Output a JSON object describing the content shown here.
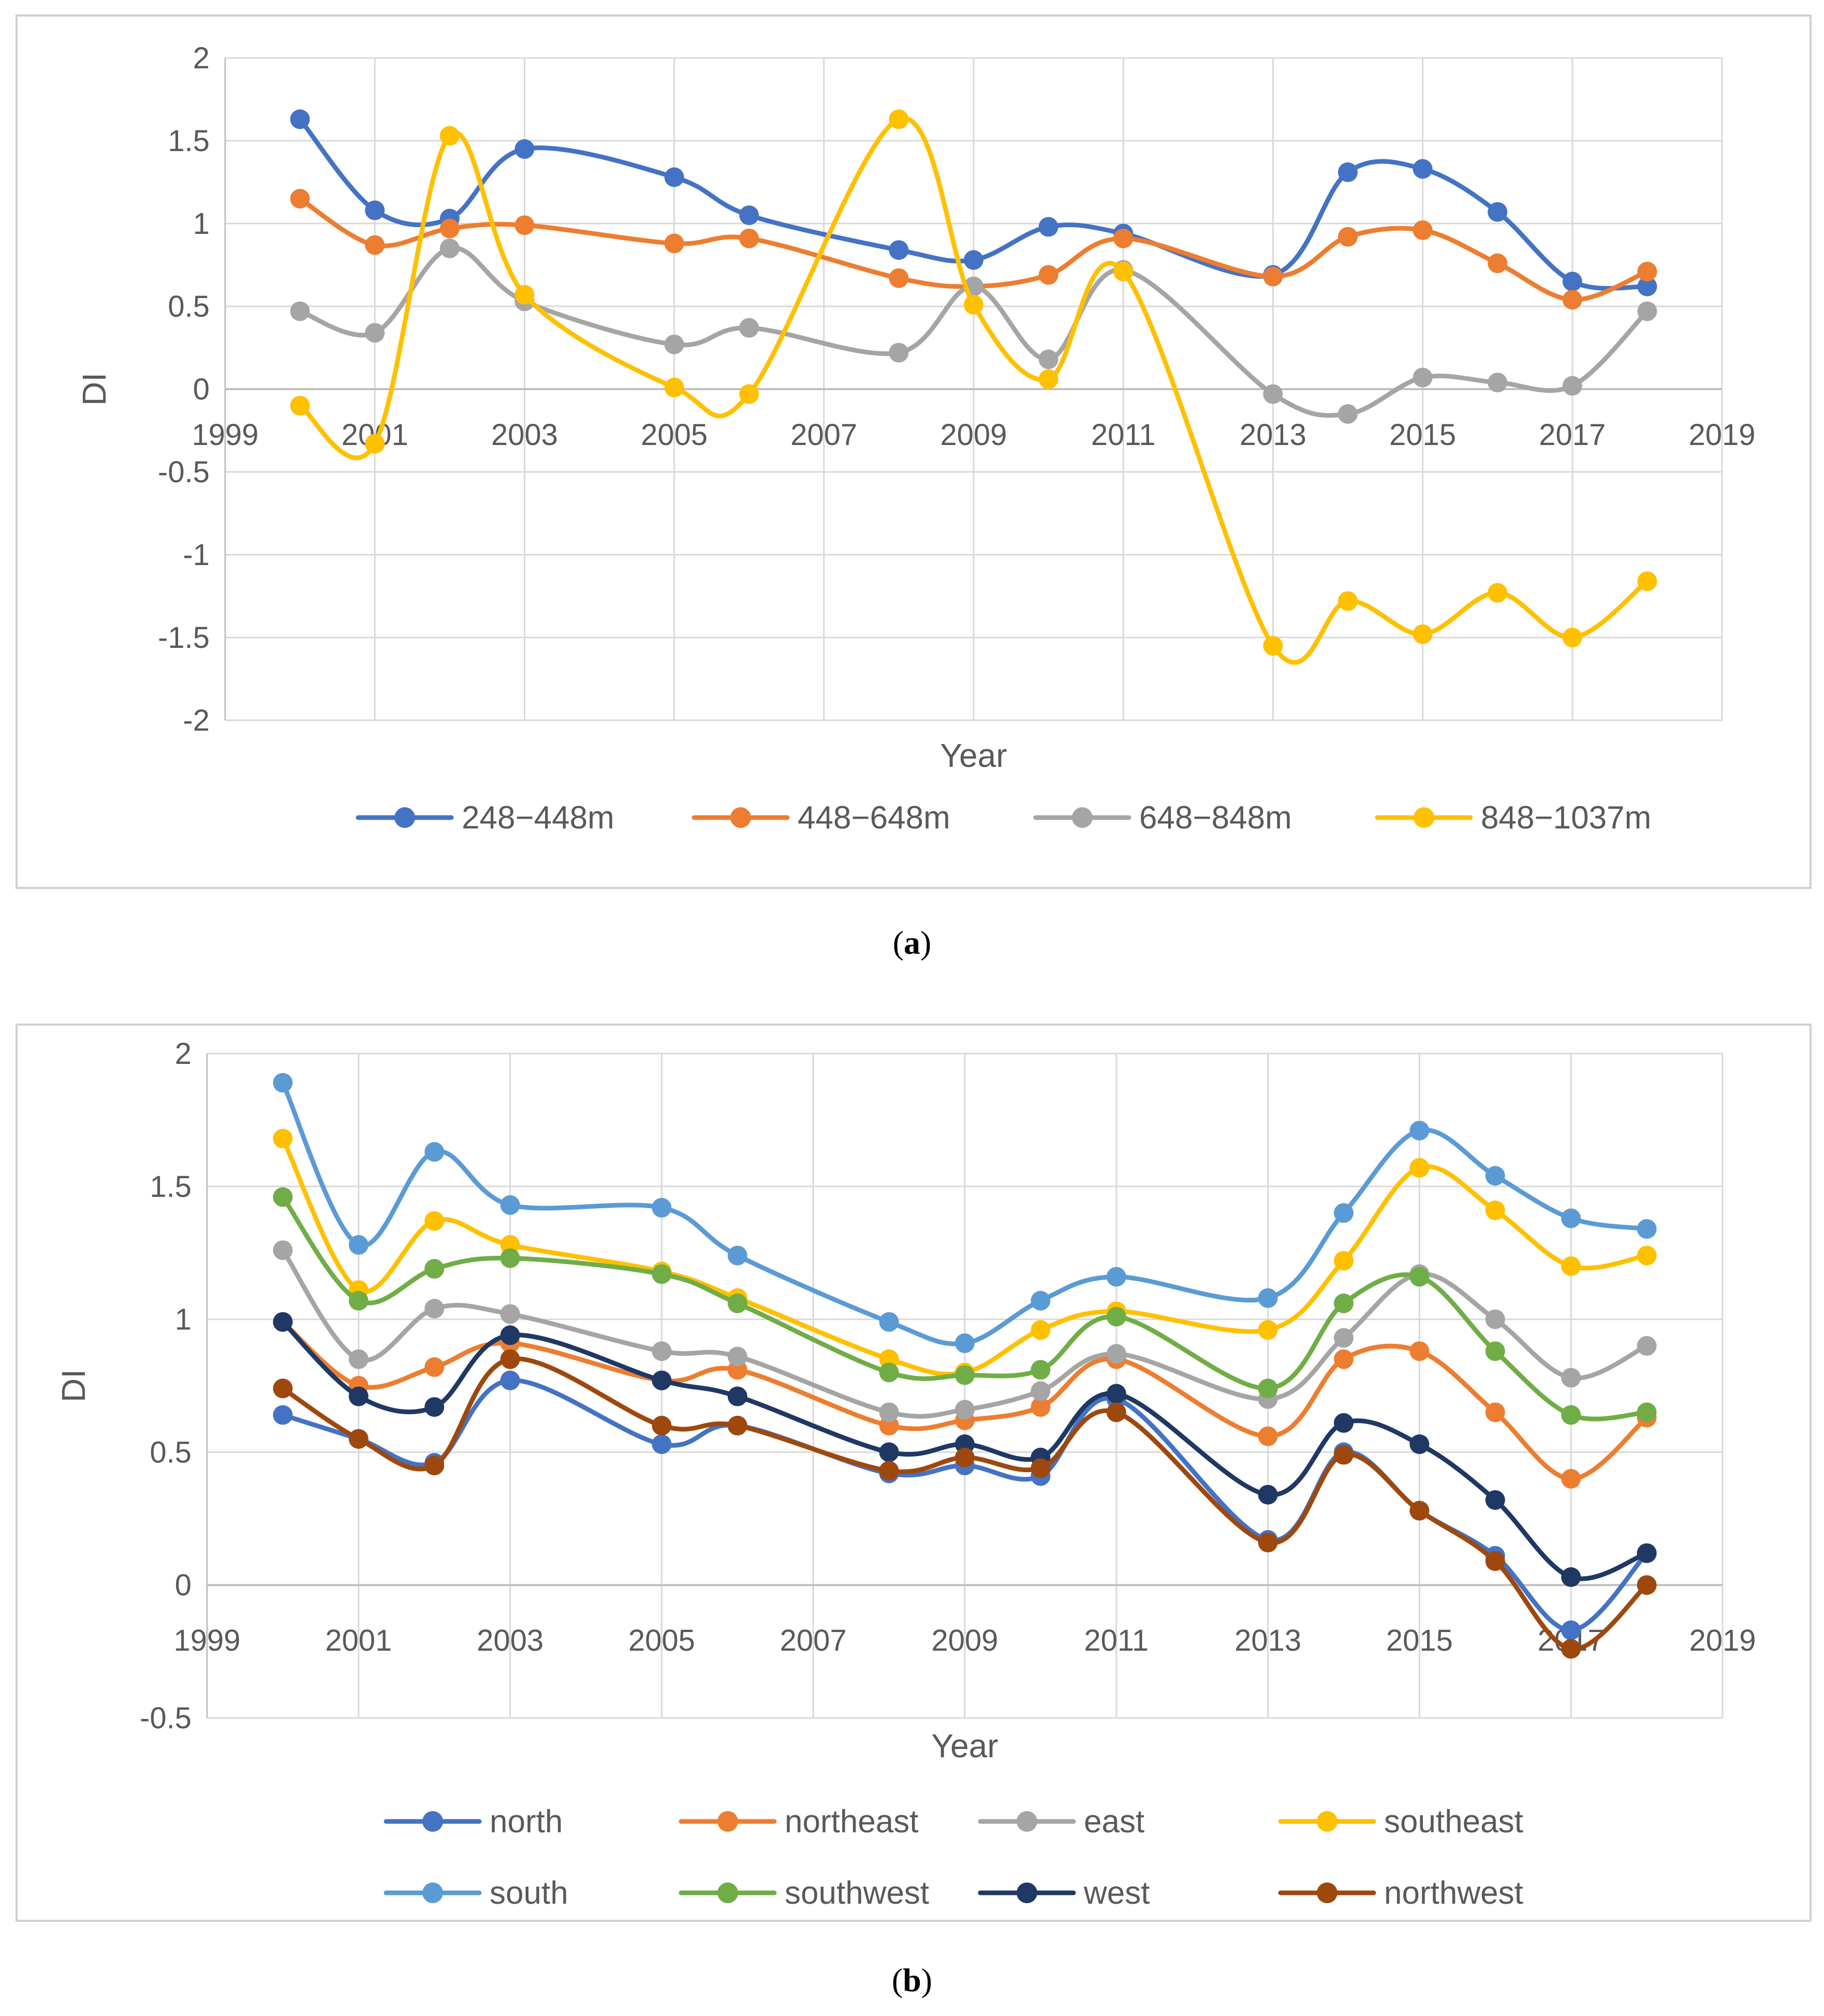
{
  "chart_data": [
    {
      "id": "a",
      "type": "line",
      "caption_letter": "a",
      "xlabel": "Year",
      "ylabel": "DI",
      "xlim": [
        1999,
        2019
      ],
      "ylim": [
        -2,
        2
      ],
      "x_ticks": [
        "1999",
        "2001",
        "2003",
        "2005",
        "2007",
        "2009",
        "2011",
        "2013",
        "2015",
        "2017",
        "2019"
      ],
      "y_ticks": [
        "2",
        "1.5",
        "1",
        "0.5",
        "0",
        "-0.5",
        "-1",
        "-1.5",
        "-2"
      ],
      "x": [
        2000,
        2001,
        2002,
        2003,
        2005,
        2006,
        2008,
        2009,
        2010,
        2011,
        2013,
        2014,
        2015,
        2016,
        2017,
        2018
      ],
      "series": [
        {
          "name": "248−448m",
          "color": "#4472c4",
          "values": [
            1.63,
            1.08,
            1.03,
            1.45,
            1.28,
            1.05,
            0.84,
            0.78,
            0.98,
            0.94,
            0.69,
            1.31,
            1.33,
            1.07,
            0.65,
            0.62
          ]
        },
        {
          "name": "448−648m",
          "color": "#ed7d31",
          "values": [
            1.15,
            0.87,
            0.97,
            0.99,
            0.88,
            0.91,
            0.67,
            0.62,
            0.69,
            0.91,
            0.68,
            0.92,
            0.96,
            0.76,
            0.54,
            0.71
          ]
        },
        {
          "name": "648−848m",
          "color": "#a5a5a5",
          "values": [
            0.47,
            0.34,
            0.85,
            0.53,
            0.27,
            0.37,
            0.22,
            0.62,
            0.18,
            0.72,
            -0.03,
            -0.15,
            0.07,
            0.04,
            0.02,
            0.47
          ]
        },
        {
          "name": "848−1037m",
          "color": "#ffc000",
          "values": [
            -0.1,
            -0.33,
            1.53,
            0.57,
            0.01,
            -0.03,
            1.63,
            0.51,
            0.06,
            0.71,
            -1.55,
            -1.28,
            -1.48,
            -1.23,
            -1.5,
            -1.16
          ]
        }
      ]
    },
    {
      "id": "b",
      "type": "line",
      "caption_letter": "b",
      "xlabel": "Year",
      "ylabel": "DI",
      "xlim": [
        1999,
        2019
      ],
      "ylim": [
        -0.5,
        2
      ],
      "x_ticks": [
        "1999",
        "2001",
        "2003",
        "2005",
        "2007",
        "2009",
        "2011",
        "2013",
        "2015",
        "2017",
        "2019"
      ],
      "y_ticks": [
        "2",
        "1.5",
        "1",
        "0.5",
        "0",
        "-0.5"
      ],
      "x": [
        2000,
        2001,
        2002,
        2003,
        2005,
        2006,
        2008,
        2009,
        2010,
        2011,
        2013,
        2014,
        2015,
        2016,
        2017,
        2018
      ],
      "series": [
        {
          "name": "north",
          "color": "#4472c4",
          "values": [
            0.64,
            0.55,
            0.46,
            0.77,
            0.53,
            0.6,
            0.42,
            0.45,
            0.41,
            0.7,
            0.17,
            0.5,
            0.28,
            0.11,
            -0.17,
            0.12
          ]
        },
        {
          "name": "northeast",
          "color": "#ed7d31",
          "values": [
            0.99,
            0.75,
            0.82,
            0.91,
            0.77,
            0.81,
            0.6,
            0.62,
            0.67,
            0.85,
            0.56,
            0.85,
            0.88,
            0.65,
            0.4,
            0.63
          ]
        },
        {
          "name": "east",
          "color": "#a5a5a5",
          "values": [
            1.26,
            0.85,
            1.04,
            1.02,
            0.88,
            0.86,
            0.65,
            0.66,
            0.73,
            0.87,
            0.7,
            0.93,
            1.17,
            1.0,
            0.78,
            0.9
          ]
        },
        {
          "name": "southeast",
          "color": "#ffc000",
          "values": [
            1.68,
            1.11,
            1.37,
            1.28,
            1.18,
            1.08,
            0.85,
            0.8,
            0.96,
            1.03,
            0.96,
            1.22,
            1.57,
            1.41,
            1.2,
            1.24
          ]
        },
        {
          "name": "south",
          "color": "#5b9bd5",
          "values": [
            1.89,
            1.28,
            1.63,
            1.43,
            1.42,
            1.24,
            0.99,
            0.91,
            1.07,
            1.16,
            1.08,
            1.4,
            1.71,
            1.54,
            1.38,
            1.34
          ]
        },
        {
          "name": "southwest",
          "color": "#70ad47",
          "values": [
            1.46,
            1.07,
            1.19,
            1.23,
            1.17,
            1.06,
            0.8,
            0.79,
            0.81,
            1.01,
            0.74,
            1.06,
            1.16,
            0.88,
            0.64,
            0.65
          ]
        },
        {
          "name": "west",
          "color": "#1f3864",
          "values": [
            0.99,
            0.71,
            0.67,
            0.94,
            0.77,
            0.71,
            0.5,
            0.53,
            0.48,
            0.72,
            0.34,
            0.61,
            0.53,
            0.32,
            0.03,
            0.12
          ]
        },
        {
          "name": "northwest",
          "color": "#9e480e",
          "values": [
            0.74,
            0.55,
            0.45,
            0.85,
            0.6,
            0.6,
            0.43,
            0.48,
            0.44,
            0.65,
            0.16,
            0.49,
            0.28,
            0.09,
            -0.24,
            0.0
          ]
        }
      ]
    }
  ]
}
